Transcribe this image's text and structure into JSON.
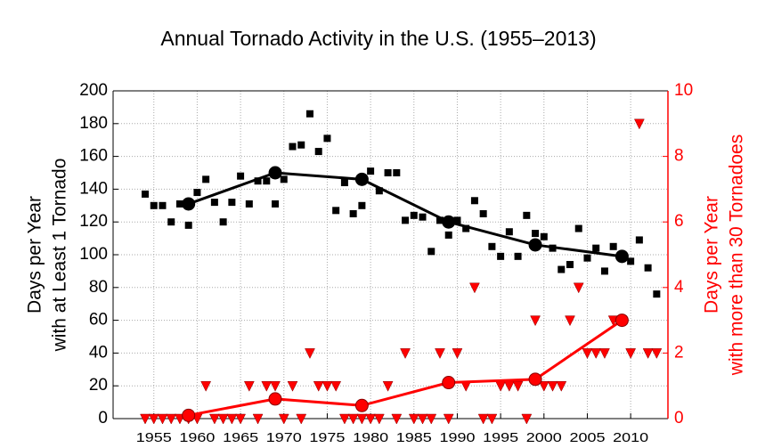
{
  "chart_data": {
    "type": "scatter",
    "title": "Annual Tornado Activity in the U.S. (1955–2013)",
    "ylabel": [
      "Days per Year",
      "with at Least 1 Tornado"
    ],
    "y2label": [
      "Days per Year",
      "with more than 30 Tornadoes"
    ],
    "xlim": [
      1950.3,
      2014.3
    ],
    "xticks": [
      1955,
      1960,
      1965,
      1970,
      1975,
      1980,
      1985,
      1990,
      1995,
      2000,
      2005,
      2010
    ],
    "ylim": [
      0,
      200
    ],
    "yticks": [
      0,
      20,
      40,
      60,
      80,
      100,
      120,
      140,
      160,
      180,
      200
    ],
    "y2lim": [
      0,
      10
    ],
    "y2ticks": [
      0,
      2,
      4,
      6,
      8,
      10
    ],
    "y2color": "#ff0000",
    "grid": true,
    "series": [
      {
        "color": "#000000",
        "marker": "square",
        "line": false,
        "x": [
          1954,
          1955,
          1956,
          1957,
          1958,
          1959,
          1960,
          1961,
          1962,
          1963,
          1964,
          1965,
          1966,
          1967,
          1968,
          1969,
          1970,
          1971,
          1972,
          1973,
          1974,
          1975,
          1976,
          1977,
          1978,
          1979,
          1980,
          1981,
          1982,
          1983,
          1984,
          1985,
          1986,
          1987,
          1988,
          1989,
          1990,
          1991,
          1992,
          1993,
          1994,
          1995,
          1996,
          1997,
          1998,
          1999,
          2000,
          2001,
          2002,
          2003,
          2004,
          2005,
          2006,
          2007,
          2008,
          2009,
          2010,
          2011,
          2012,
          2013
        ],
        "values": [
          137,
          130,
          130,
          120,
          131,
          118,
          138,
          146,
          132,
          120,
          132,
          148,
          131,
          145,
          145,
          131,
          146,
          166,
          167,
          186,
          163,
          171,
          127,
          144,
          125,
          130,
          151,
          139,
          150,
          150,
          121,
          124,
          123,
          102,
          121,
          112,
          121,
          116,
          133,
          125,
          105,
          99,
          114,
          99,
          124,
          113,
          111,
          104,
          91,
          94,
          116,
          98,
          104,
          90,
          105,
          98,
          96,
          109,
          92,
          76
        ]
      },
      {
        "color": "#ff0000",
        "marker": "triangle",
        "line": false,
        "axis": "y2",
        "x": [
          1954,
          1955,
          1956,
          1957,
          1958,
          1959,
          1960,
          1961,
          1962,
          1963,
          1964,
          1965,
          1966,
          1967,
          1968,
          1969,
          1970,
          1971,
          1972,
          1973,
          1974,
          1975,
          1976,
          1977,
          1978,
          1979,
          1980,
          1981,
          1982,
          1983,
          1984,
          1985,
          1986,
          1987,
          1988,
          1989,
          1990,
          1991,
          1992,
          1993,
          1994,
          1995,
          1996,
          1997,
          1998,
          1999,
          2000,
          2001,
          2002,
          2003,
          2004,
          2005,
          2006,
          2007,
          2008,
          2009,
          2010,
          2011,
          2012,
          2013
        ],
        "values": [
          0,
          0,
          0,
          0,
          0,
          0,
          0,
          1,
          0,
          0,
          0,
          0,
          1,
          0,
          1,
          1,
          0,
          1,
          0,
          2,
          1,
          1,
          1,
          0,
          0,
          0,
          0,
          0,
          1,
          0,
          2,
          0,
          0,
          0,
          2,
          0,
          2,
          1,
          4,
          0,
          0,
          1,
          1,
          1,
          0,
          3,
          1,
          1,
          1,
          3,
          4,
          2,
          2,
          2,
          3,
          3,
          2,
          9,
          2,
          2
        ]
      },
      {
        "color": "#000000",
        "marker": "circle",
        "line": true,
        "x": [
          1959,
          1969,
          1979,
          1989,
          1999,
          2009
        ],
        "values": [
          131,
          150,
          146,
          120,
          106,
          99
        ]
      },
      {
        "color": "#ff0000",
        "marker": "circle",
        "line": true,
        "axis": "y2",
        "x": [
          1959,
          1969,
          1979,
          1989,
          1999,
          2009
        ],
        "values": [
          0.1,
          0.6,
          0.4,
          1.1,
          1.2,
          3
        ]
      }
    ]
  }
}
